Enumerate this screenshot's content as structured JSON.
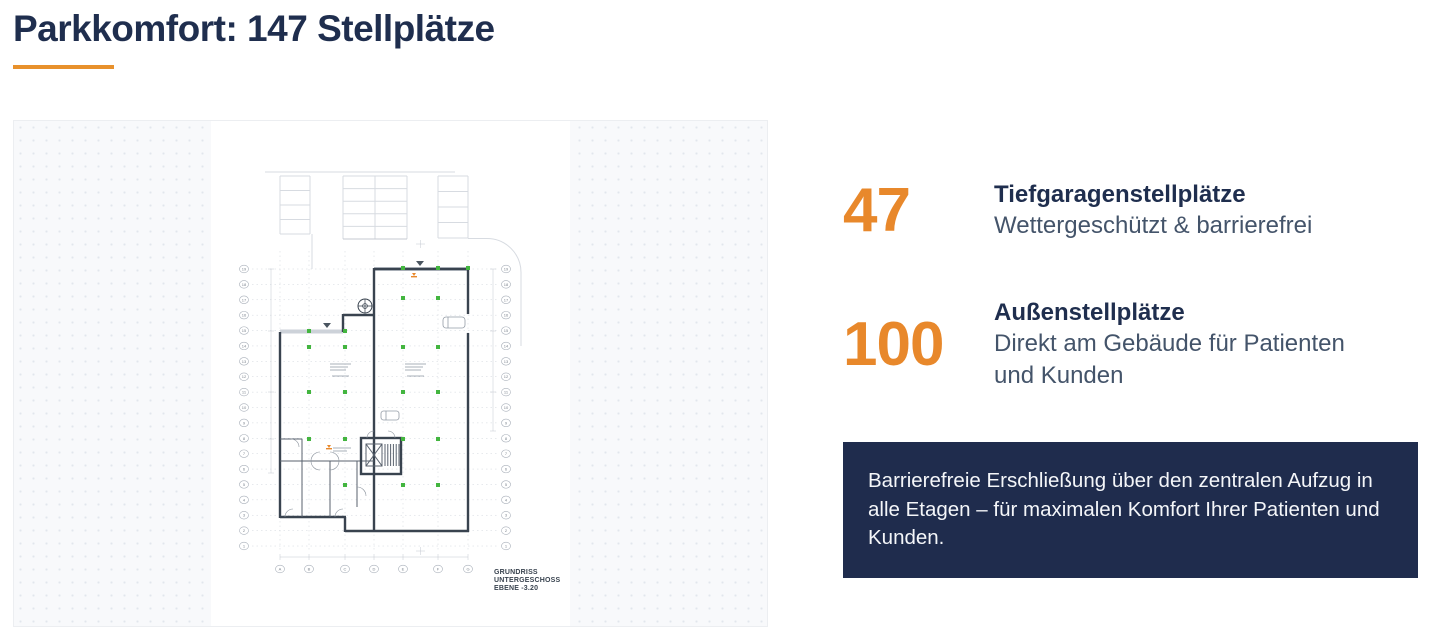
{
  "title": "Parkkomfort: 147 Stellplätze",
  "stats": [
    {
      "value": "47",
      "label": "Tiefgaragenstellplätze",
      "description": "Wettergeschützt & barrierefrei"
    },
    {
      "value": "100",
      "label": "Außenstellplätze",
      "description": "Direkt am Gebäude für Patienten und Kunden"
    }
  ],
  "callout": "Barrierefreie Erschließung über den zentralen Aufzug in alle Etagen – für maximalen Komfort Ihrer Patienten und Kunden.",
  "floorplan": {
    "caption_lines": [
      "GRUNDRISS",
      "UNTERGESCHOSS",
      "EBENE -3.20"
    ],
    "row_markers": [
      "19",
      "18",
      "17",
      "16",
      "15",
      "14",
      "13",
      "12",
      "11",
      "10",
      "9",
      "8",
      "7",
      "6",
      "5",
      "4",
      "3",
      "2",
      "1"
    ],
    "col_markers": [
      "A",
      "B",
      "C",
      "D",
      "E",
      "F",
      "G"
    ]
  },
  "colors": {
    "accent": "#E8882B",
    "navy": "#1F2E4E",
    "callout_bg": "#1F2C4D",
    "plan_green": "#43B53F"
  }
}
